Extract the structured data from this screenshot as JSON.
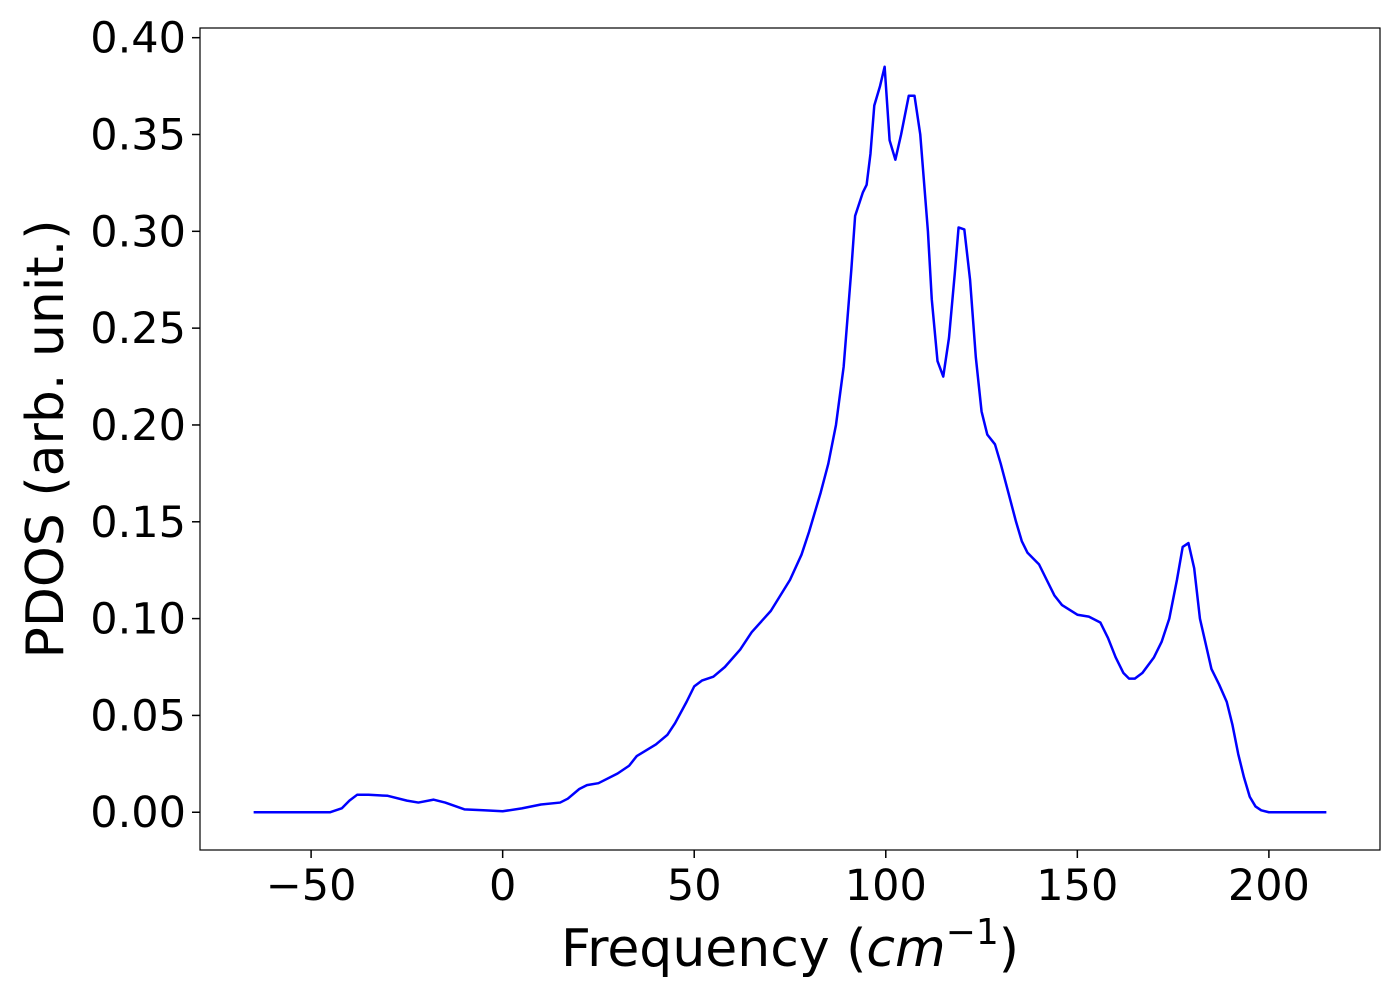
{
  "chart_data": {
    "type": "line",
    "xlabel": [
      "Frequency (",
      "cm",
      "−1",
      ")"
    ],
    "ylabel": "PDOS (arb. unit.)",
    "x": [
      -65,
      -55,
      -45,
      -42,
      -40,
      -38,
      -35,
      -30,
      -25,
      -22,
      -18,
      -15,
      -10,
      -5,
      0,
      5,
      10,
      15,
      17,
      20,
      22,
      25,
      30,
      33,
      35,
      40,
      43,
      45,
      48,
      50,
      52,
      55,
      58,
      62,
      65,
      70,
      75,
      78,
      80,
      83,
      85,
      87,
      89,
      91,
      92,
      94,
      95,
      96,
      97,
      98.5,
      99.7,
      101,
      102.5,
      104,
      106,
      107.5,
      109,
      111,
      112,
      113.5,
      115,
      116.5,
      118,
      119,
      120.5,
      122,
      123.5,
      125,
      126.5,
      128.5,
      130,
      132,
      134,
      135.5,
      137,
      140,
      142,
      144,
      146,
      150,
      153,
      156,
      158,
      160,
      162,
      163.5,
      165,
      167,
      170,
      172,
      174,
      176,
      177.5,
      179,
      180.5,
      182,
      183.5,
      185,
      187,
      189,
      190.5,
      192,
      193.5,
      195,
      196.5,
      198,
      200,
      215
    ],
    "series": [
      {
        "color": "#0000ff",
        "values": [
          0,
          0,
          0,
          0.002,
          0.006,
          0.009,
          0.009,
          0.0085,
          0.006,
          0.005,
          0.0065,
          0.005,
          0.0015,
          0.001,
          0.0005,
          0.002,
          0.004,
          0.005,
          0.007,
          0.012,
          0.014,
          0.015,
          0.02,
          0.024,
          0.029,
          0.035,
          0.04,
          0.046,
          0.057,
          0.065,
          0.068,
          0.07,
          0.075,
          0.084,
          0.093,
          0.104,
          0.12,
          0.133,
          0.145,
          0.165,
          0.18,
          0.2,
          0.23,
          0.28,
          0.308,
          0.32,
          0.324,
          0.34,
          0.365,
          0.375,
          0.385,
          0.347,
          0.337,
          0.35,
          0.37,
          0.37,
          0.35,
          0.3,
          0.265,
          0.233,
          0.225,
          0.245,
          0.278,
          0.302,
          0.301,
          0.275,
          0.235,
          0.207,
          0.195,
          0.19,
          0.18,
          0.165,
          0.15,
          0.14,
          0.134,
          0.128,
          0.12,
          0.112,
          0.107,
          0.102,
          0.101,
          0.098,
          0.09,
          0.08,
          0.072,
          0.069,
          0.069,
          0.072,
          0.08,
          0.088,
          0.1,
          0.12,
          0.137,
          0.139,
          0.126,
          0.1,
          0.087,
          0.074,
          0.066,
          0.057,
          0.045,
          0.03,
          0.018,
          0.008,
          0.003,
          0.001,
          0,
          0
        ]
      }
    ],
    "xlim": [
      -79,
      229
    ],
    "ylim": [
      -0.0195,
      0.405
    ],
    "xticks": [
      {
        "value": -50,
        "label": "−50"
      },
      0,
      50,
      100,
      150,
      200
    ],
    "yticks": [
      {
        "value": 0,
        "label": "0.00"
      },
      {
        "value": 0.05,
        "label": "0.05"
      },
      {
        "value": 0.1,
        "label": "0.10"
      },
      {
        "value": 0.15,
        "label": "0.15"
      },
      {
        "value": 0.2,
        "label": "0.20"
      },
      {
        "value": 0.25,
        "label": "0.25"
      },
      {
        "value": 0.3,
        "label": "0.30"
      },
      {
        "value": 0.35,
        "label": "0.35"
      },
      {
        "value": 0.4,
        "label": "0.40"
      }
    ],
    "grid": false
  }
}
